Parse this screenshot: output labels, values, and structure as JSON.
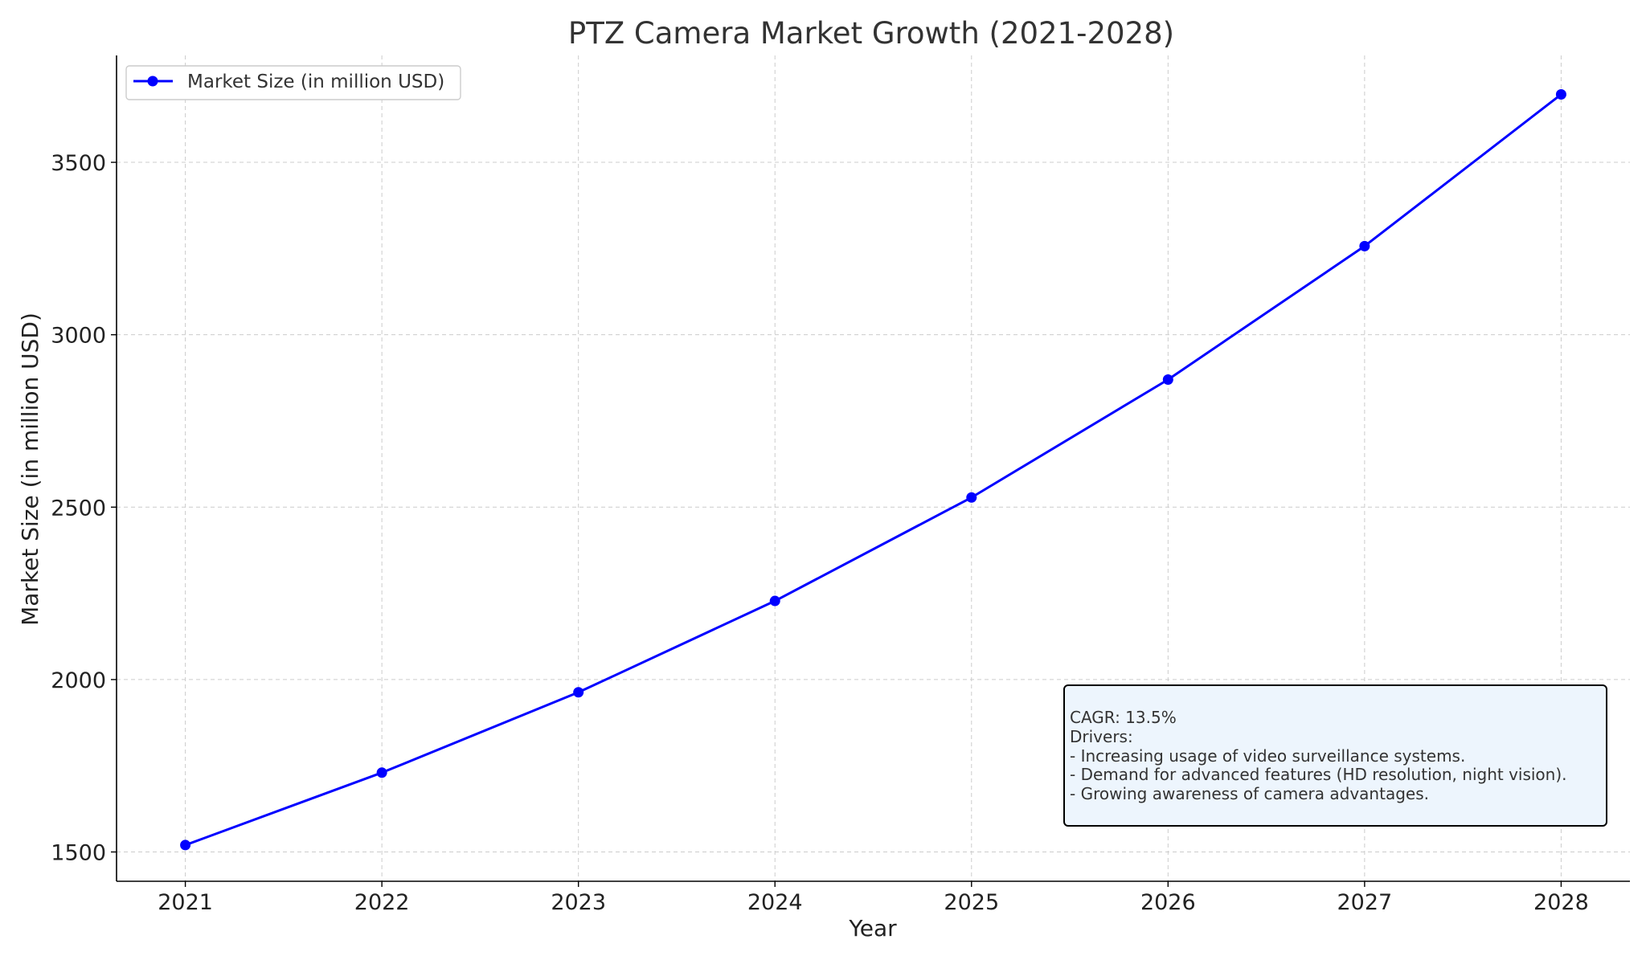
{
  "chart_data": {
    "type": "line",
    "title": "PTZ Camera Market Growth (2021-2028)",
    "xlabel": "Year",
    "ylabel": "Market Size (in million USD)",
    "x": [
      2021,
      2022,
      2023,
      2024,
      2025,
      2026,
      2027,
      2028
    ],
    "xticks": [
      "2021",
      "2022",
      "2023",
      "2024",
      "2025",
      "2026",
      "2027",
      "2028"
    ],
    "yticks": [
      "1500",
      "2000",
      "2500",
      "3000",
      "3500"
    ],
    "ytick_values": [
      1500,
      2000,
      2500,
      3000,
      3500
    ],
    "xlim": [
      2020.65,
      2028.35
    ],
    "ylim": [
      1415,
      3810
    ],
    "grid": true,
    "legend_position": "top-left",
    "series": [
      {
        "name": "Market Size (in million USD)",
        "color": "#0000ff",
        "marker": "circle",
        "values": [
          1520,
          1730,
          1963,
          2228,
          2528,
          2870,
          3257,
          3697
        ]
      }
    ],
    "annotation": {
      "lines": [
        "CAGR: 13.5%",
        "Drivers:",
        "- Increasing usage of video surveillance systems.",
        "- Demand for advanced features (HD resolution, night vision).",
        "- Growing awareness of camera advantages."
      ],
      "background": "#edf5fd",
      "border": "#000000"
    }
  }
}
